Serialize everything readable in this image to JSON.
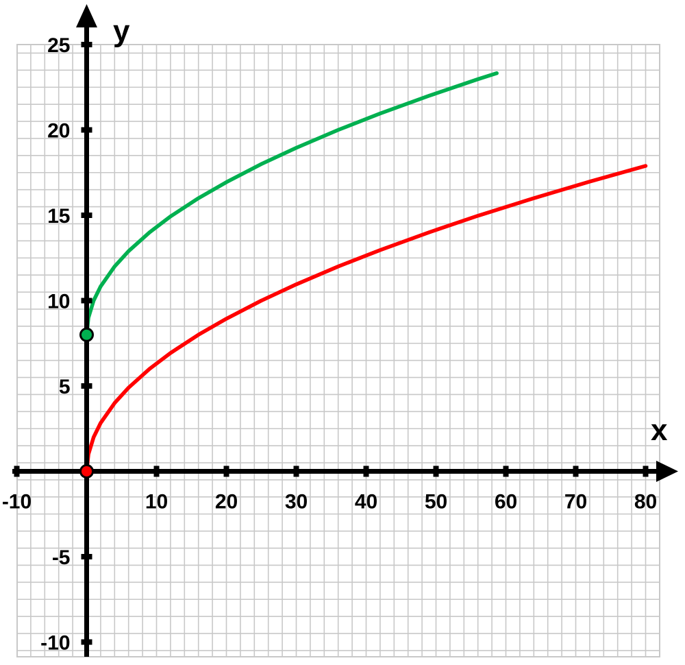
{
  "chart_data": {
    "type": "line",
    "title": "",
    "xlabel": "x",
    "ylabel": "y",
    "xlim": [
      -10,
      80
    ],
    "ylim": [
      -10,
      25
    ],
    "grid": true,
    "x_ticks": [
      -10,
      10,
      20,
      30,
      40,
      50,
      60,
      70,
      80
    ],
    "y_ticks": [
      -10,
      -5,
      5,
      10,
      15,
      20,
      25
    ],
    "x_tick_labels": [
      "-10",
      "10",
      "20",
      "30",
      "40",
      "50",
      "60",
      "70",
      "80"
    ],
    "y_tick_labels": [
      "-10",
      "-5",
      "5",
      "10",
      "15",
      "20",
      "25"
    ],
    "series": [
      {
        "color": "#00b050",
        "x": [
          0,
          0.25,
          1,
          2,
          4,
          6,
          9,
          12,
          16,
          20,
          25,
          30,
          36,
          42,
          49,
          56,
          58.7
        ],
        "y": [
          8,
          9,
          10,
          10.83,
          12,
          12.9,
          14,
          14.93,
          16,
          16.94,
          18,
          18.95,
          20,
          20.96,
          22,
          22.97,
          23.32
        ],
        "endpoint": [
          0,
          8
        ]
      },
      {
        "color": "#ff0000",
        "x": [
          0,
          0.25,
          1,
          2,
          4,
          6,
          9,
          12,
          16,
          20,
          25,
          30,
          36,
          42,
          49,
          56,
          64,
          72,
          80
        ],
        "y": [
          0,
          1,
          2,
          2.83,
          4,
          4.9,
          6,
          6.93,
          8,
          8.94,
          10,
          10.95,
          12,
          12.96,
          14,
          14.97,
          16,
          16.97,
          17.89
        ],
        "endpoint": [
          0,
          0
        ]
      }
    ],
    "colors": {
      "grid": "#c8c8c8",
      "axis": "#000000"
    }
  }
}
